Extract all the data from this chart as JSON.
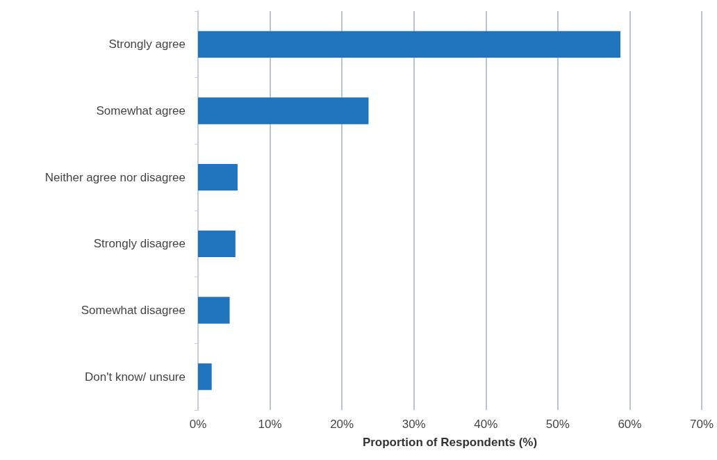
{
  "chart_data": {
    "type": "bar",
    "orientation": "horizontal",
    "xlabel": "Proportion of Respondents (%)",
    "categories": [
      "Strongly agree",
      "Somewhat agree",
      "Neither agree nor disagree",
      "Strongly disagree",
      "Somewhat disagree",
      "Don't know/ unsure"
    ],
    "values": [
      58.7,
      23.7,
      5.5,
      5.2,
      4.4,
      1.9
    ],
    "color": "#1f74bd",
    "xlim": [
      0,
      70
    ],
    "xticks": [
      {
        "value": 0,
        "label": "0%"
      },
      {
        "value": 10,
        "label": "10%"
      },
      {
        "value": 20,
        "label": "20%"
      },
      {
        "value": 30,
        "label": "30%"
      },
      {
        "value": 40,
        "label": "40%"
      },
      {
        "value": 50,
        "label": "50%"
      },
      {
        "value": 60,
        "label": "60%"
      },
      {
        "value": 70,
        "label": "70%"
      }
    ],
    "grid": "x"
  }
}
